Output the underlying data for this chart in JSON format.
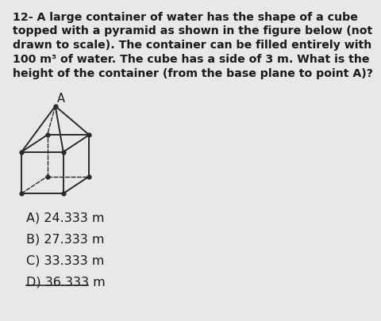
{
  "question_text": "12- A large container of water has the shape of a cube\ntopped with a pyramid as shown in the figure below (not\ndrawn to scale). The container can be filled entirely with\n100 m³ of water. The cube has a side of 3 m. What is the\nheight of the container (from the base plane to point A)?",
  "answers": [
    "A) 24.333 m",
    "B) 27.333 m",
    "C) 33.333 m",
    "D) 36.333 m"
  ],
  "bg_color": "#e8e8e8",
  "text_color": "#1a1a1a",
  "line_color": "#2a2a2a",
  "fig_width": 4.61,
  "fig_height": 5.01,
  "question_fontsize": 10.2,
  "answer_fontsize": 11.5
}
